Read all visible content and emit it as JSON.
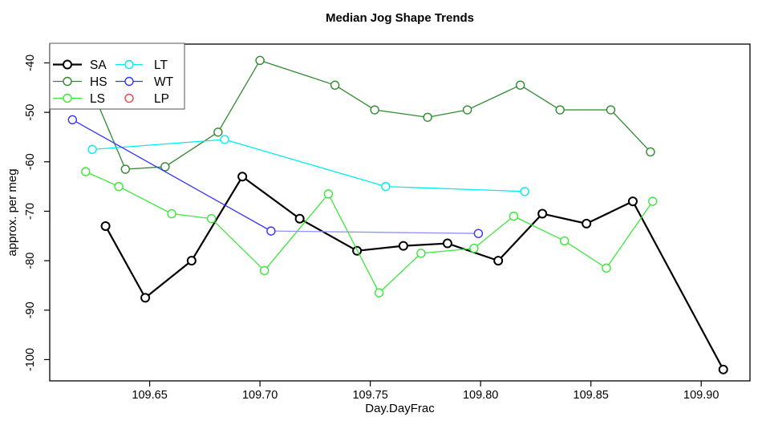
{
  "chart_data": {
    "type": "line",
    "title": "Median Jog Shape Trends",
    "xlabel": "Day.DayFrac",
    "ylabel": "approx. per meg",
    "xlim": [
      109.6047,
      109.9221
    ],
    "ylim": [
      -104.3,
      -36.2
    ],
    "x_ticks": [
      109.65,
      109.7,
      109.75,
      109.8,
      109.85,
      109.9
    ],
    "x_tick_labels": [
      "109.65",
      "109.70",
      "109.75",
      "109.80",
      "109.85",
      "109.90"
    ],
    "y_ticks": [
      -100,
      -90,
      -80,
      -70,
      -60,
      -50,
      -40
    ],
    "y_tick_labels": [
      "-100",
      "-90",
      "-80",
      "-70",
      "-60",
      "-50",
      "-40"
    ],
    "grid": false,
    "legend_position": "top-left",
    "marker": "open-circle",
    "axis_color": "#000000",
    "background": "#ffffff",
    "series": [
      {
        "name": "SA",
        "color": "#000000",
        "line_width": 2.2,
        "has_line": true,
        "points": [
          [
            109.63,
            -73
          ],
          [
            109.648,
            -87.5
          ],
          [
            109.669,
            -80
          ],
          [
            109.692,
            -63
          ],
          [
            109.718,
            -71.5
          ],
          [
            109.744,
            -78
          ],
          [
            109.765,
            -77
          ],
          [
            109.785,
            -76.5
          ],
          [
            109.808,
            -80
          ],
          [
            109.828,
            -70.5
          ],
          [
            109.848,
            -72.5
          ],
          [
            109.869,
            -68
          ],
          [
            109.91,
            -102
          ]
        ]
      },
      {
        "name": "HS",
        "color": "#2E8B2E",
        "line_width": 1.3,
        "has_line": true,
        "points": [
          [
            109.621,
            -42.5
          ],
          [
            109.639,
            -61.5
          ],
          [
            109.657,
            -61
          ],
          [
            109.681,
            -54
          ],
          [
            109.7,
            -39.5
          ],
          [
            109.734,
            -44.5
          ],
          [
            109.752,
            -49.5
          ],
          [
            109.776,
            -51
          ],
          [
            109.794,
            -49.5
          ],
          [
            109.818,
            -44.5
          ],
          [
            109.836,
            -49.5
          ],
          [
            109.859,
            -49.5
          ],
          [
            109.877,
            -58
          ]
        ]
      },
      {
        "name": "LS",
        "color": "#3BE83B",
        "line_width": 1.3,
        "has_line": true,
        "points": [
          [
            109.621,
            -62
          ],
          [
            109.636,
            -65
          ],
          [
            109.66,
            -70.5
          ],
          [
            109.678,
            -71.5
          ],
          [
            109.702,
            -82
          ],
          [
            109.731,
            -66.5
          ],
          [
            109.754,
            -86.5
          ],
          [
            109.773,
            -78.5
          ],
          [
            109.797,
            -77.5
          ],
          [
            109.815,
            -71
          ],
          [
            109.838,
            -76
          ],
          [
            109.857,
            -81.5
          ],
          [
            109.878,
            -68
          ]
        ]
      },
      {
        "name": "LT",
        "color": "#00EEEE",
        "line_width": 1.3,
        "has_line": true,
        "points": [
          [
            109.624,
            -57.5
          ],
          [
            109.684,
            -55.5
          ],
          [
            109.757,
            -65
          ],
          [
            109.82,
            -66
          ]
        ]
      },
      {
        "name": "WT",
        "color": "#3535FF",
        "line_width": 1.3,
        "has_line": true,
        "segment_colors": [
          "#3535FF",
          "#9090FF"
        ],
        "points": [
          [
            109.615,
            -51.5
          ],
          [
            109.705,
            -74
          ],
          [
            109.799,
            -74.5
          ]
        ]
      },
      {
        "name": "LP",
        "color": "#FF4040",
        "line_width": 1.3,
        "has_line": false,
        "points": []
      }
    ]
  }
}
